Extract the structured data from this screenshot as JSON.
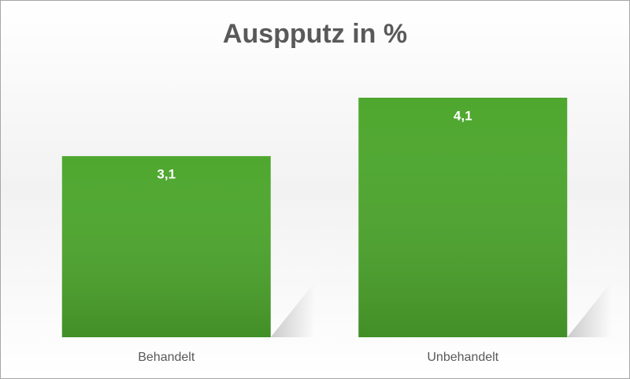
{
  "chart_data": {
    "type": "bar",
    "title": "Auspputz in %",
    "categories": [
      "Behandelt",
      "Unbehandelt"
    ],
    "values": [
      3.1,
      4.1
    ],
    "value_labels": [
      "3,1",
      "4,1"
    ],
    "color": "#4ea72e"
  }
}
